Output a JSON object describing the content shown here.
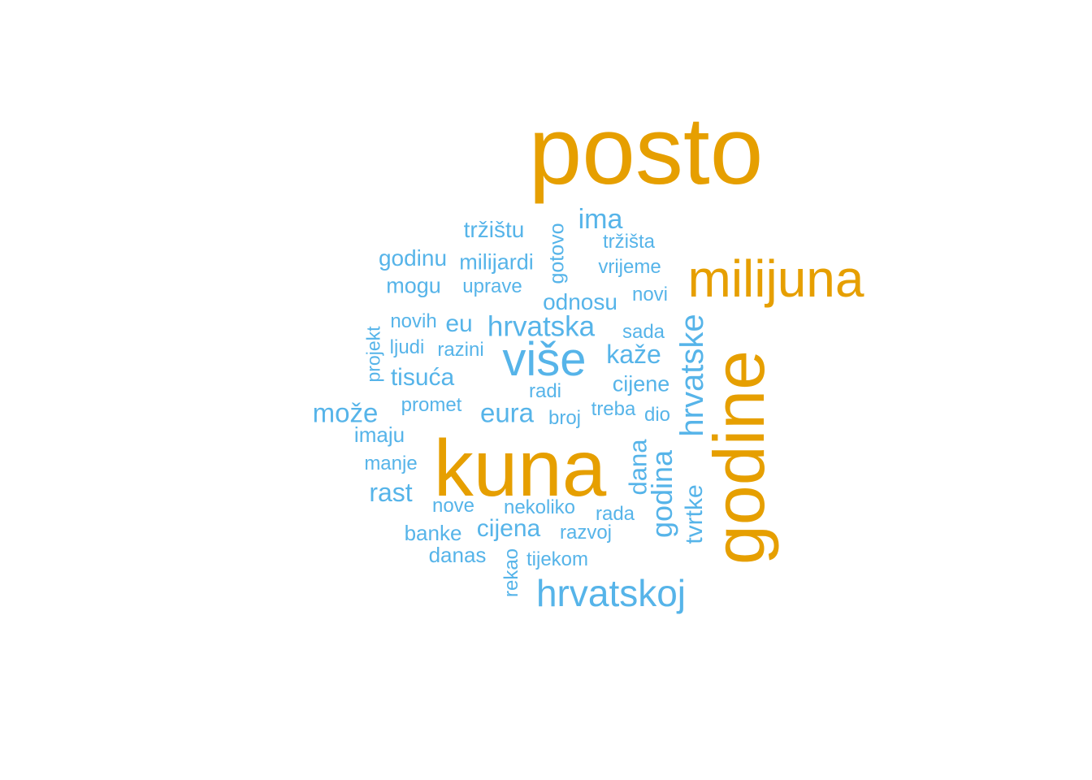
{
  "colors": {
    "high": "#E69F00",
    "low": "#56B4E9"
  },
  "words": [
    {
      "text": "posto",
      "tier": "high"
    },
    {
      "text": "kuna",
      "tier": "high"
    },
    {
      "text": "godine",
      "tier": "high"
    },
    {
      "text": "milijuna",
      "tier": "high"
    },
    {
      "text": "više",
      "tier": "low"
    },
    {
      "text": "hrvatskoj",
      "tier": "low"
    },
    {
      "text": "hrvatske",
      "tier": "low"
    },
    {
      "text": "godina",
      "tier": "low"
    },
    {
      "text": "hrvatska",
      "tier": "low"
    },
    {
      "text": "ima",
      "tier": "low"
    },
    {
      "text": "može",
      "tier": "low"
    },
    {
      "text": "kaže",
      "tier": "low"
    },
    {
      "text": "eura",
      "tier": "low"
    },
    {
      "text": "tisuća",
      "tier": "low"
    },
    {
      "text": "rast",
      "tier": "low"
    },
    {
      "text": "cijena",
      "tier": "low"
    },
    {
      "text": "odnosu",
      "tier": "low"
    },
    {
      "text": "dana",
      "tier": "low"
    },
    {
      "text": "tvrtke",
      "tier": "low"
    },
    {
      "text": "godinu",
      "tier": "low"
    },
    {
      "text": "tržištu",
      "tier": "low"
    },
    {
      "text": "milijardi",
      "tier": "low"
    },
    {
      "text": "mogu",
      "tier": "low"
    },
    {
      "text": "eu",
      "tier": "low"
    },
    {
      "text": "cijene",
      "tier": "low"
    },
    {
      "text": "gotovo",
      "tier": "low"
    },
    {
      "text": "danas",
      "tier": "low"
    },
    {
      "text": "banke",
      "tier": "low"
    },
    {
      "text": "imaju",
      "tier": "low"
    },
    {
      "text": "rekao",
      "tier": "low"
    },
    {
      "text": "vrijeme",
      "tier": "low"
    },
    {
      "text": "tržišta",
      "tier": "low"
    },
    {
      "text": "uprave",
      "tier": "low"
    },
    {
      "text": "novih",
      "tier": "low"
    },
    {
      "text": "razini",
      "tier": "low"
    },
    {
      "text": "ljudi",
      "tier": "low"
    },
    {
      "text": "projekt",
      "tier": "low"
    },
    {
      "text": "promet",
      "tier": "low"
    },
    {
      "text": "radi",
      "tier": "low"
    },
    {
      "text": "broj",
      "tier": "low"
    },
    {
      "text": "treba",
      "tier": "low"
    },
    {
      "text": "dio",
      "tier": "low"
    },
    {
      "text": "sada",
      "tier": "low"
    },
    {
      "text": "novi",
      "tier": "low"
    },
    {
      "text": "manje",
      "tier": "low"
    },
    {
      "text": "nove",
      "tier": "low"
    },
    {
      "text": "nekoliko",
      "tier": "low"
    },
    {
      "text": "rada",
      "tier": "low"
    },
    {
      "text": "razvoj",
      "tier": "low"
    },
    {
      "text": "tijekom",
      "tier": "low"
    }
  ]
}
